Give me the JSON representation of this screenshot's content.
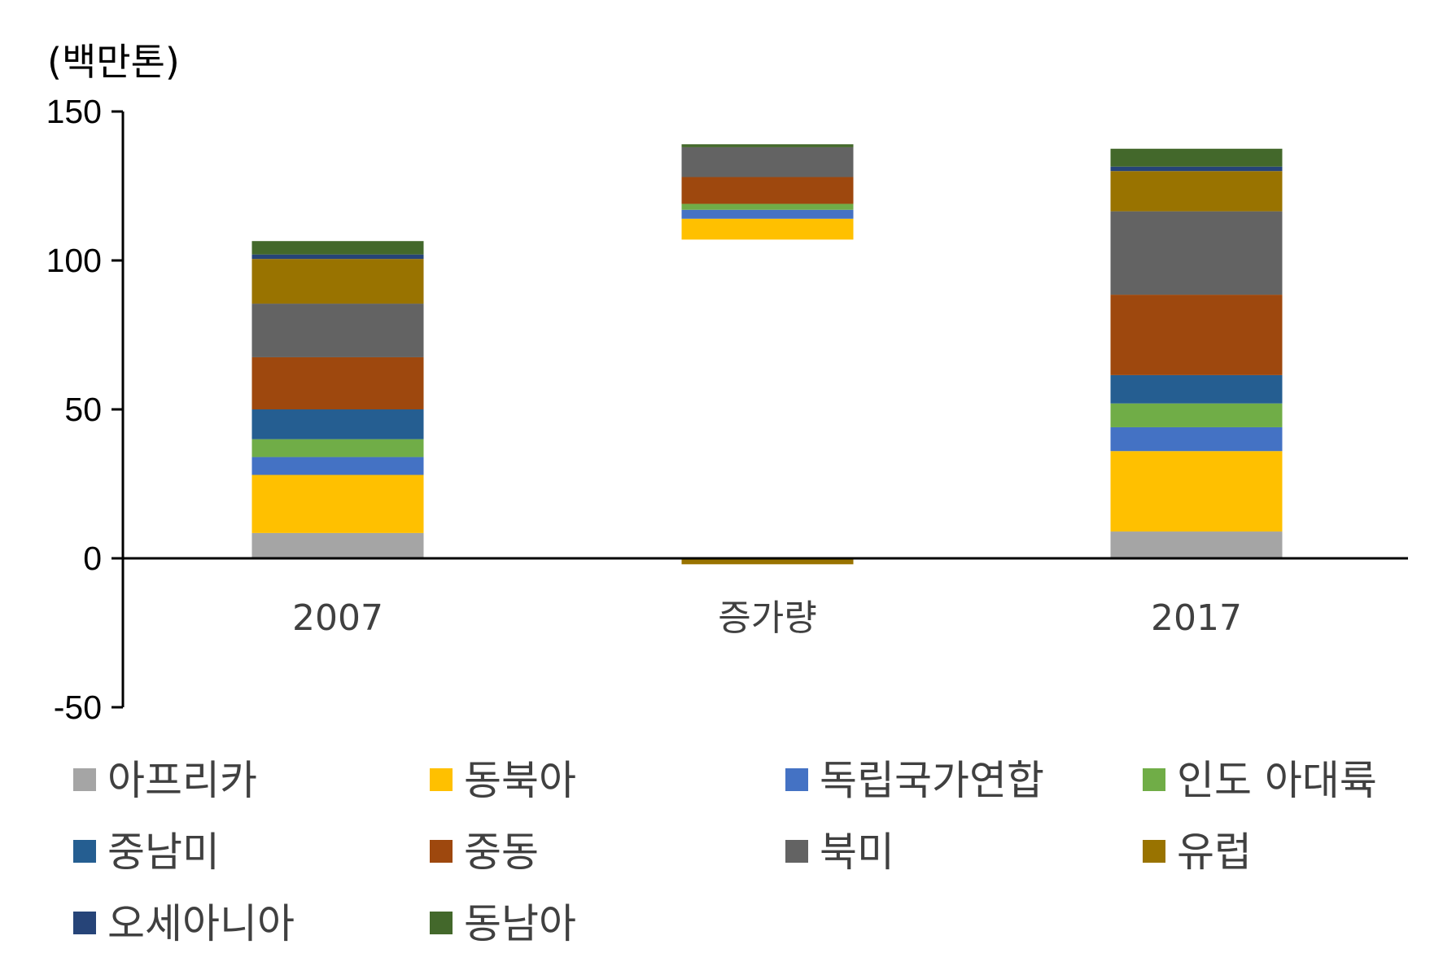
{
  "chart_data": {
    "type": "bar",
    "stacked": true,
    "title": "",
    "unit_label": "(백만톤)",
    "xlabel": "",
    "ylabel": "",
    "ylim": [
      -50,
      150
    ],
    "yticks": [
      150,
      100,
      50,
      0,
      -50
    ],
    "grid": false,
    "legend_position": "bottom",
    "categories": [
      "2007",
      "증가량",
      "2017"
    ],
    "series": [
      {
        "name": "아프리카",
        "color": "#A5A5A5",
        "values": [
          8.5,
          0.0,
          9.0
        ]
      },
      {
        "name": "동북아",
        "color": "#FFC000",
        "values": [
          19.5,
          7.0,
          27.0
        ]
      },
      {
        "name": "독립국가연합",
        "color": "#4472C4",
        "values": [
          6.0,
          3.0,
          8.0
        ]
      },
      {
        "name": "인도 아대륙",
        "color": "#70AD47",
        "values": [
          6.0,
          2.0,
          8.0
        ]
      },
      {
        "name": "중남미",
        "color": "#255E91",
        "values": [
          10.0,
          0.0,
          9.5
        ]
      },
      {
        "name": "중동",
        "color": "#9E480E",
        "values": [
          17.5,
          9.0,
          27.0
        ]
      },
      {
        "name": "북미",
        "color": "#636363",
        "values": [
          18.0,
          10.0,
          28.0
        ]
      },
      {
        "name": "유럽",
        "color": "#997300",
        "values": [
          15.0,
          -2.0,
          13.5
        ]
      },
      {
        "name": "오세아니아",
        "color": "#264478",
        "values": [
          1.5,
          0.0,
          1.5
        ]
      },
      {
        "name": "동남아",
        "color": "#43682B",
        "values": [
          4.5,
          1.0,
          6.0
        ]
      }
    ],
    "waterfall_base": [
      0,
      107,
      0
    ]
  }
}
